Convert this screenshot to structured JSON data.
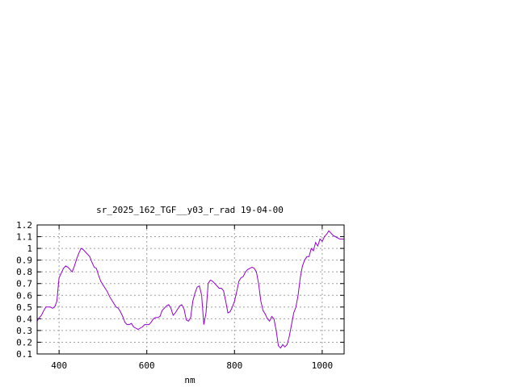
{
  "chart_data": {
    "type": "line",
    "title": "sr_2025_162_TGF__y03_r_rad 19-04-00",
    "xlabel": "nm",
    "ylabel": "",
    "xlim": [
      350,
      1050
    ],
    "ylim": [
      0.1,
      1.2
    ],
    "x_ticks": [
      400,
      600,
      800,
      1000
    ],
    "x_tick_labels": [
      "400",
      "600",
      "800",
      "1000"
    ],
    "y_ticks": [
      0.1,
      0.2,
      0.3,
      0.4,
      0.5,
      0.6,
      0.7,
      0.8,
      0.9,
      1.0,
      1.1,
      1.2
    ],
    "y_tick_labels": [
      "0.1",
      "0.2",
      "0.3",
      "0.4",
      "0.5",
      "0.6",
      "0.7",
      "0.8",
      "0.9",
      "1",
      "1.1",
      "1.2"
    ],
    "grid": true,
    "legend": "none",
    "series": [
      {
        "color": "#9400d3",
        "x": [
          350,
          355,
          360,
          365,
          370,
          375,
          380,
          385,
          390,
          395,
          400,
          405,
          410,
          415,
          420,
          425,
          430,
          435,
          440,
          445,
          450,
          455,
          460,
          465,
          470,
          475,
          480,
          485,
          490,
          495,
          500,
          505,
          510,
          515,
          520,
          525,
          530,
          535,
          540,
          545,
          550,
          555,
          560,
          565,
          570,
          575,
          580,
          585,
          590,
          595,
          600,
          605,
          610,
          615,
          620,
          625,
          630,
          635,
          640,
          645,
          650,
          655,
          660,
          665,
          670,
          675,
          680,
          685,
          690,
          695,
          700,
          705,
          710,
          715,
          720,
          725,
          730,
          735,
          740,
          745,
          750,
          755,
          760,
          765,
          770,
          775,
          780,
          785,
          790,
          795,
          800,
          805,
          810,
          815,
          820,
          825,
          830,
          835,
          840,
          845,
          850,
          855,
          860,
          865,
          870,
          875,
          880,
          885,
          890,
          895,
          900,
          905,
          910,
          915,
          920,
          925,
          930,
          935,
          940,
          945,
          950,
          955,
          960,
          965,
          970,
          975,
          980,
          985,
          990,
          995,
          1000,
          1005,
          1010,
          1015,
          1020,
          1025,
          1030,
          1035,
          1040,
          1045,
          1050
        ],
        "y": [
          0.38,
          0.41,
          0.43,
          0.47,
          0.5,
          0.5,
          0.5,
          0.49,
          0.5,
          0.55,
          0.75,
          0.79,
          0.83,
          0.85,
          0.84,
          0.82,
          0.8,
          0.85,
          0.91,
          0.96,
          1.0,
          0.99,
          0.97,
          0.95,
          0.93,
          0.88,
          0.84,
          0.83,
          0.77,
          0.72,
          0.69,
          0.66,
          0.63,
          0.59,
          0.56,
          0.53,
          0.5,
          0.49,
          0.46,
          0.42,
          0.37,
          0.35,
          0.35,
          0.36,
          0.33,
          0.32,
          0.31,
          0.32,
          0.33,
          0.35,
          0.35,
          0.35,
          0.37,
          0.4,
          0.41,
          0.41,
          0.42,
          0.47,
          0.49,
          0.51,
          0.52,
          0.49,
          0.43,
          0.45,
          0.48,
          0.51,
          0.52,
          0.48,
          0.39,
          0.38,
          0.41,
          0.55,
          0.62,
          0.67,
          0.68,
          0.6,
          0.35,
          0.45,
          0.7,
          0.73,
          0.72,
          0.7,
          0.68,
          0.66,
          0.66,
          0.64,
          0.55,
          0.45,
          0.46,
          0.5,
          0.55,
          0.63,
          0.72,
          0.75,
          0.76,
          0.8,
          0.82,
          0.83,
          0.84,
          0.83,
          0.8,
          0.7,
          0.55,
          0.47,
          0.44,
          0.4,
          0.38,
          0.42,
          0.4,
          0.3,
          0.17,
          0.15,
          0.18,
          0.16,
          0.18,
          0.25,
          0.35,
          0.45,
          0.5,
          0.6,
          0.75,
          0.85,
          0.9,
          0.93,
          0.93,
          1.0,
          0.98,
          1.05,
          1.02,
          1.08,
          1.06,
          1.1,
          1.12,
          1.15,
          1.13,
          1.11,
          1.1,
          1.09,
          1.08,
          1.08,
          1.08
        ]
      }
    ]
  }
}
